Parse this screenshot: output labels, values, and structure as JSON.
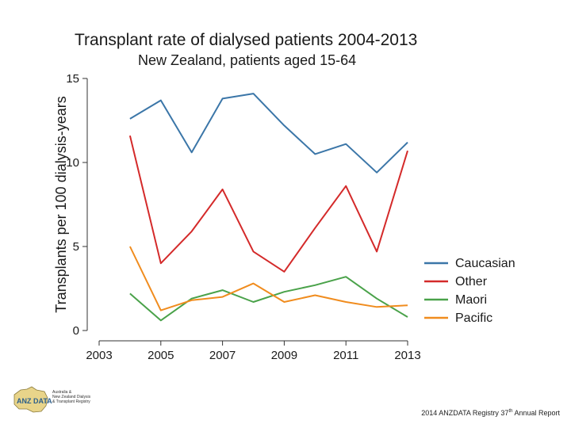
{
  "chart_data": {
    "type": "line",
    "title": "Transplant rate of dialysed patients 2004-2013",
    "subtitle": "New Zealand, patients aged 15-64",
    "xlabel": "",
    "ylabel": "Transplants per 100 dialysis-years",
    "x": [
      2004,
      2005,
      2006,
      2007,
      2008,
      2009,
      2010,
      2011,
      2012,
      2013
    ],
    "xlim": [
      2003,
      2013
    ],
    "ylim": [
      0,
      15
    ],
    "xticks": [
      "2003",
      "2005",
      "2007",
      "2009",
      "2011",
      "2013"
    ],
    "yticks": [
      "0",
      "5",
      "10",
      "15"
    ],
    "series": [
      {
        "name": "Caucasian",
        "color": "#3b76a8",
        "values": [
          12.6,
          13.7,
          10.6,
          13.8,
          14.1,
          12.2,
          10.5,
          11.1,
          9.4,
          11.2
        ]
      },
      {
        "name": "Other",
        "color": "#d42a2a",
        "values": [
          11.6,
          4.0,
          5.9,
          8.4,
          4.7,
          3.5,
          6.1,
          8.6,
          4.7,
          10.7
        ]
      },
      {
        "name": "Maori",
        "color": "#4aa24a",
        "values": [
          2.2,
          0.6,
          1.9,
          2.4,
          1.7,
          2.3,
          2.7,
          3.2,
          1.9,
          0.8
        ]
      },
      {
        "name": "Pacific",
        "color": "#f08c1e",
        "values": [
          5.0,
          1.2,
          1.8,
          2.0,
          2.8,
          1.7,
          2.1,
          1.7,
          1.4,
          1.5
        ]
      }
    ],
    "legend_position": "right"
  },
  "logo": {
    "mark": "ANZ DATA",
    "line1": "Australia &",
    "line2": "New Zealand Dialysis",
    "line3": "& Transplant Registry"
  },
  "footer": {
    "prefix": "2014 ANZDATA Registry 37",
    "superscript": "th",
    "suffix": " Annual Report"
  }
}
